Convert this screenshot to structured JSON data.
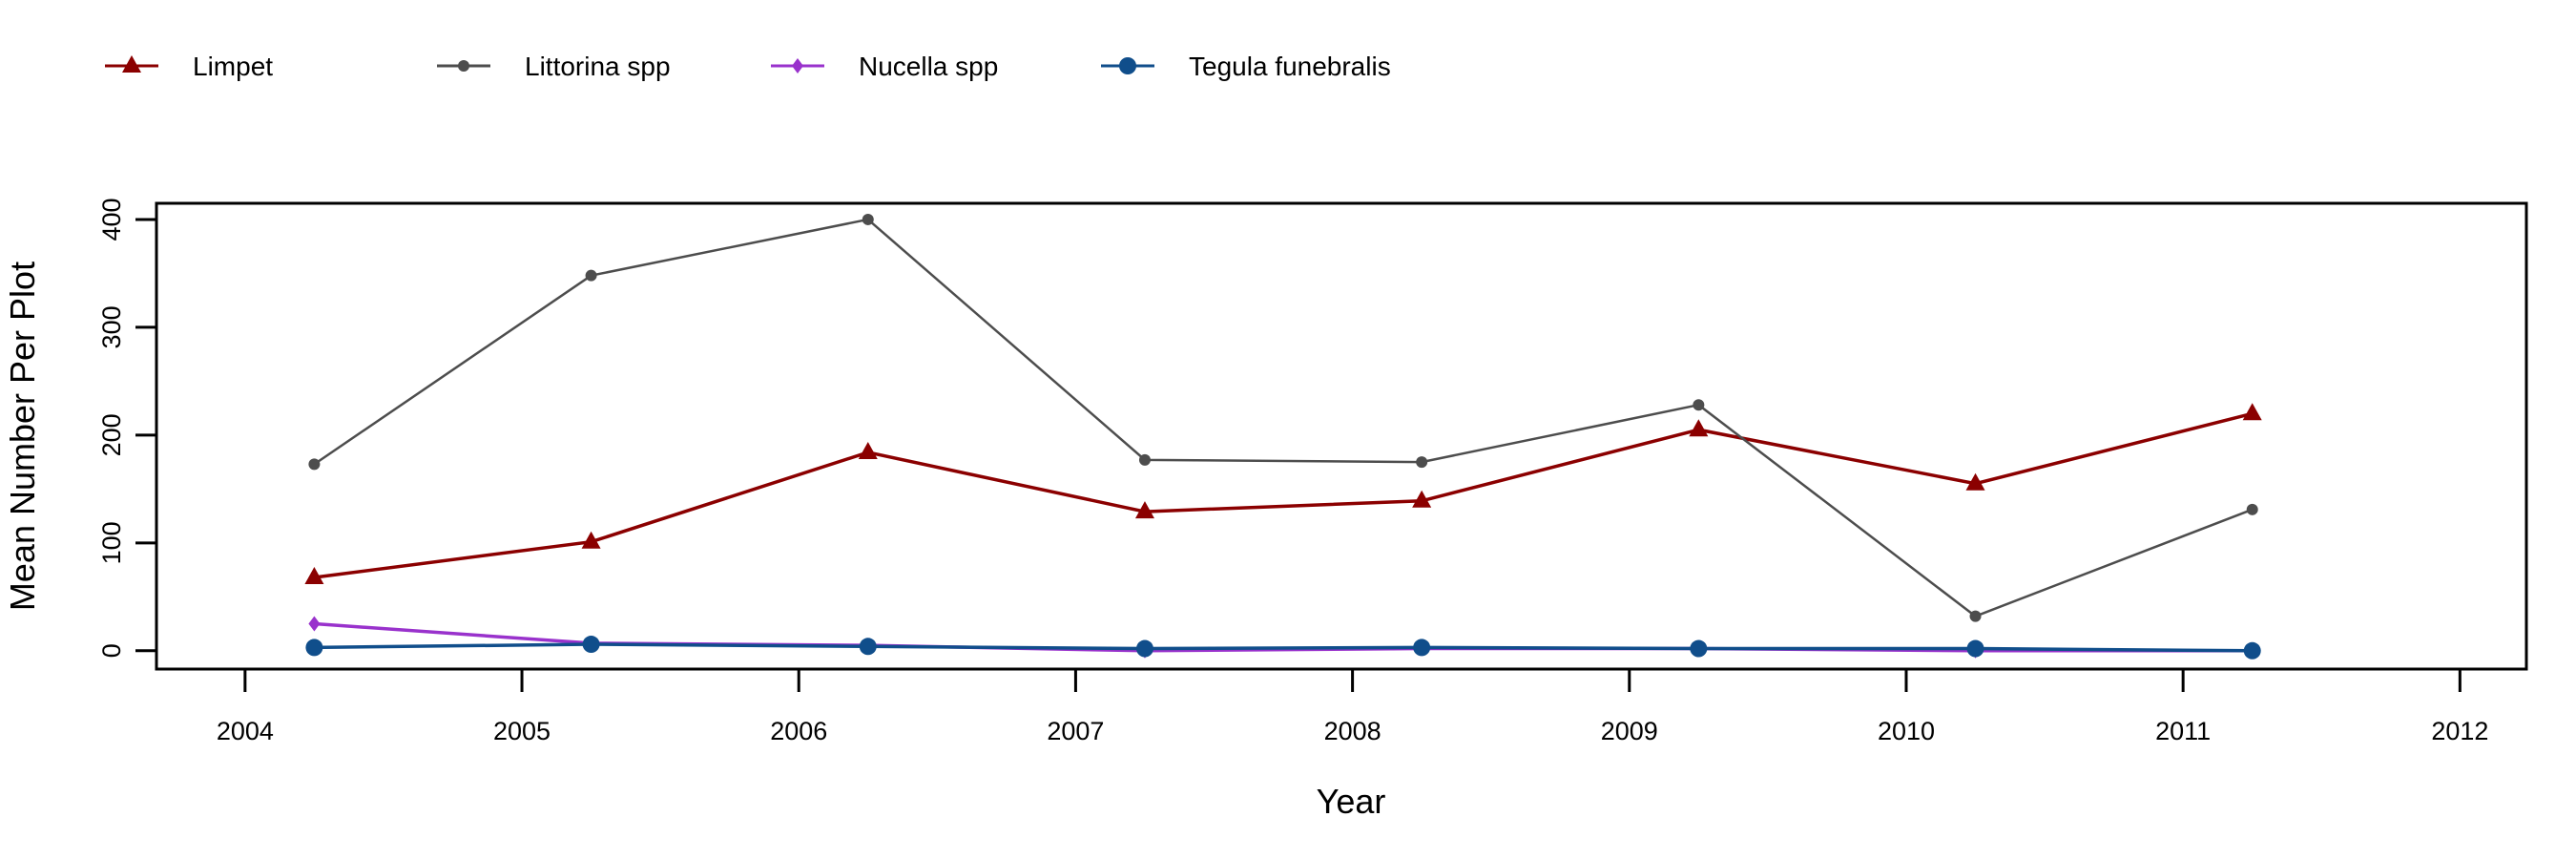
{
  "chart_data": {
    "type": "line",
    "xlabel": "Year",
    "ylabel": "Mean Number Per Plot",
    "xlim": [
      2003.68,
      2012.24
    ],
    "ylim": [
      -17,
      415
    ],
    "xticks": [
      2004,
      2005,
      2006,
      2007,
      2008,
      2009,
      2010,
      2011,
      2012
    ],
    "yticks": [
      0,
      100,
      200,
      300,
      400
    ],
    "grid": false,
    "legend_position": "top",
    "x": [
      2004.25,
      2005.25,
      2006.25,
      2007.25,
      2008.25,
      2009.25,
      2010.25,
      2011.25
    ],
    "series": [
      {
        "name": "Limpet",
        "color": "#8B0000",
        "marker": "triangle",
        "values": [
          68,
          101,
          184,
          129,
          139,
          205,
          155,
          220
        ]
      },
      {
        "name": "Littorina spp",
        "color": "#4D4D4D",
        "marker": "small-circle",
        "values": [
          173,
          348,
          400,
          177,
          175,
          228,
          32,
          131
        ]
      },
      {
        "name": "Nucella spp",
        "color": "#9932CC",
        "marker": "diamond",
        "values": [
          25,
          7,
          5,
          0,
          2,
          2,
          0,
          0
        ]
      },
      {
        "name": "Tegula funebralis",
        "color": "#104E8B",
        "marker": "circle",
        "values": [
          3,
          6,
          4,
          2,
          3,
          2,
          2,
          0
        ]
      }
    ]
  }
}
